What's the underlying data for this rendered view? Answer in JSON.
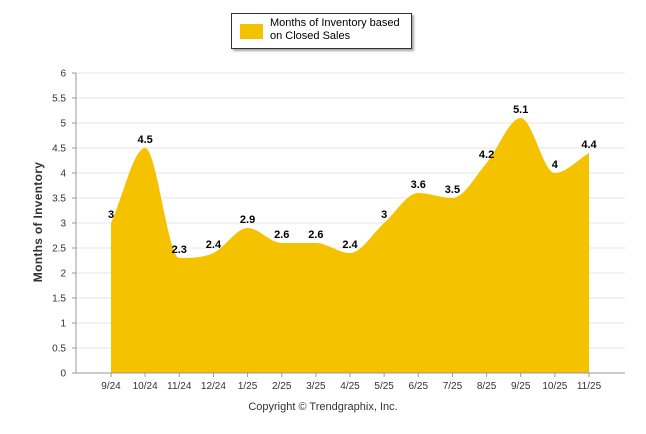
{
  "chart_data": {
    "type": "area",
    "categories": [
      "9/24",
      "10/24",
      "11/24",
      "12/24",
      "1/25",
      "2/25",
      "3/25",
      "4/25",
      "5/25",
      "6/25",
      "7/25",
      "8/25",
      "9/25",
      "10/25",
      "11/25"
    ],
    "series": [
      {
        "name": "Months of Inventory based on Closed Sales",
        "values": [
          3,
          4.5,
          2.3,
          2.4,
          2.9,
          2.6,
          2.6,
          2.4,
          3,
          3.6,
          3.5,
          4.2,
          5.1,
          4,
          4.4
        ],
        "color": "#F5C200"
      }
    ],
    "title": "",
    "xlabel": "",
    "ylabel": "Months of Inventory",
    "ylim": [
      0,
      6
    ],
    "yticks": [
      "0",
      "0.5",
      "1",
      "1.5",
      "2",
      "2.5",
      "3",
      "3.5",
      "4",
      "4.5",
      "5",
      "5.5",
      "6"
    ],
    "grid": true,
    "legend": {
      "placement": "top-center",
      "line1": "Months of Inventory based",
      "line2": "on Closed Sales"
    }
  },
  "footer": "Copyright © Trendgraphix, Inc.",
  "colors": {
    "fill": "#F5C200",
    "grid": "#e6e6e6",
    "axis": "#999999"
  }
}
